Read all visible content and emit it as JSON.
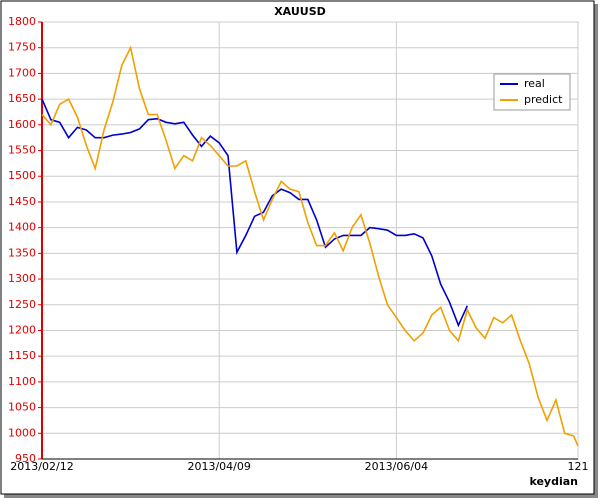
{
  "chart_data": {
    "type": "line",
    "title": "XAUUSD",
    "watermark": "keydian",
    "x": [
      0,
      2,
      4,
      6,
      8,
      10,
      12,
      14,
      16,
      18,
      20,
      22,
      24,
      26,
      28,
      30,
      32,
      34,
      36,
      38,
      40,
      42,
      44,
      46,
      48,
      50,
      52,
      54,
      56,
      58,
      60,
      62,
      64,
      66,
      68,
      70,
      72,
      74,
      76,
      78,
      80,
      82,
      84,
      86,
      88,
      90,
      92,
      94,
      96,
      98,
      100,
      102,
      104,
      106,
      108,
      110,
      112,
      114,
      116,
      118,
      120,
      121
    ],
    "series": [
      {
        "name": "real",
        "color": "#0000cc",
        "values": [
          1650,
          1610,
          1605,
          1575,
          1595,
          1590,
          1575,
          1575,
          1580,
          1582,
          1585,
          1592,
          1610,
          1612,
          1605,
          1602,
          1605,
          1580,
          1558,
          1578,
          1565,
          1540,
          1352,
          1385,
          1422,
          1430,
          1462,
          1475,
          1468,
          1455,
          1455,
          1415,
          1362,
          1378,
          1385,
          1385,
          1385,
          1400,
          1398,
          1395,
          1385,
          1385,
          1388,
          1380,
          1345,
          1290,
          1255,
          1210,
          1248,
          null,
          null,
          null,
          null,
          null,
          null,
          null,
          null,
          null,
          null,
          null,
          null,
          null
        ]
      },
      {
        "name": "predict",
        "color": "#f0a000",
        "values": [
          1620,
          1600,
          1640,
          1650,
          1615,
          1560,
          1515,
          1590,
          1645,
          1715,
          1750,
          1670,
          1620,
          1620,
          1570,
          1515,
          1540,
          1530,
          1575,
          1560,
          1540,
          1520,
          1520,
          1530,
          1470,
          1415,
          1455,
          1490,
          1475,
          1470,
          1410,
          1365,
          1365,
          1390,
          1355,
          1400,
          1425,
          1370,
          1305,
          1250,
          1225,
          1200,
          1180,
          1195,
          1230,
          1245,
          1200,
          1180,
          1240,
          1205,
          1185,
          1225,
          1215,
          1230,
          1180,
          1135,
          1070,
          1025,
          1065,
          1000,
          995,
          975
        ]
      }
    ],
    "xlim": [
      0,
      121
    ],
    "xticks": [
      {
        "value": 0,
        "label": "2013/02/12"
      },
      {
        "value": 40,
        "label": "2013/04/09"
      },
      {
        "value": 80,
        "label": "2013/06/04"
      },
      121
    ],
    "ylim": [
      950,
      1800
    ],
    "yticks": [
      950,
      1000,
      1050,
      1100,
      1150,
      1200,
      1250,
      1300,
      1350,
      1400,
      1450,
      1500,
      1550,
      1600,
      1650,
      1700,
      1750,
      1800
    ],
    "grid": true,
    "legend": "upper right"
  }
}
